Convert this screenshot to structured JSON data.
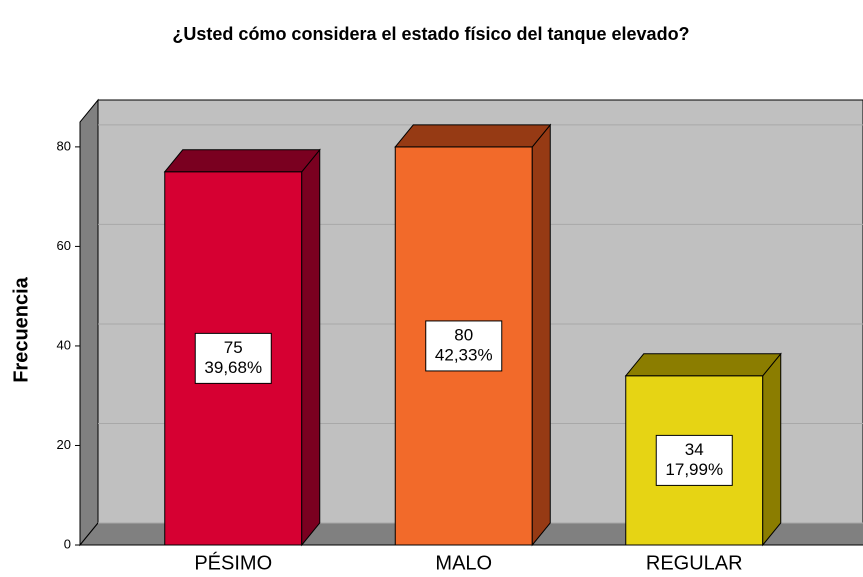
{
  "chart_data": {
    "type": "bar3d",
    "title": "¿Usted cómo considera el estado físico del tanque elevado?",
    "y_label": "Frecuencia",
    "categories": [
      "PÉSIMO",
      "MALO",
      "REGULAR"
    ],
    "values": [
      75,
      80,
      34
    ],
    "percentages": [
      39.68,
      42.33,
      17.99
    ],
    "percentage_labels": [
      "39,68%",
      "42,33%",
      "17,99%"
    ],
    "colors": [
      "#d60032",
      "#f26a2a",
      "#e6d414"
    ],
    "side_colors": [
      "#7a0020",
      "#963a14",
      "#8b7d00"
    ],
    "ylim": [
      0,
      85
    ],
    "yticks": [
      0,
      20,
      40,
      60,
      80
    ],
    "grid": true
  }
}
